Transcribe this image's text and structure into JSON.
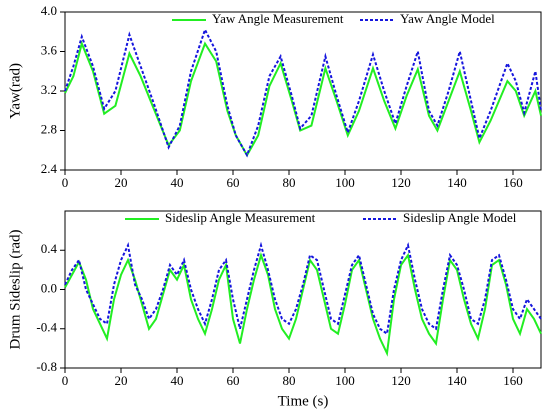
{
  "chart_data": [
    {
      "type": "line",
      "ylabel": "Yaw(rad)",
      "x": [
        0,
        3,
        6,
        10,
        14,
        18,
        23,
        27,
        32,
        37,
        41,
        45,
        50,
        54,
        58,
        61,
        65,
        69,
        73,
        77,
        81,
        84,
        88,
        93,
        97,
        101,
        105,
        110,
        114,
        118,
        122,
        126,
        130,
        133,
        137,
        141,
        145,
        148,
        152,
        158,
        161,
        164,
        168,
        170
      ],
      "series": [
        {
          "name": "Yaw Angle Measurement",
          "color": "#22ee22",
          "dash": "solid",
          "values": [
            3.18,
            3.35,
            3.68,
            3.4,
            2.97,
            3.05,
            3.58,
            3.35,
            3.0,
            2.65,
            2.8,
            3.3,
            3.68,
            3.5,
            3.0,
            2.75,
            2.55,
            2.75,
            3.25,
            3.48,
            3.1,
            2.8,
            2.85,
            3.43,
            3.1,
            2.75,
            3.0,
            3.43,
            3.1,
            2.82,
            3.15,
            3.42,
            2.95,
            2.8,
            3.1,
            3.4,
            3.0,
            2.68,
            2.9,
            3.3,
            3.2,
            2.95,
            3.2,
            2.95
          ]
        },
        {
          "name": "Yaw Angle Model",
          "color": "#1515dd",
          "dash": "dotted",
          "values": [
            3.2,
            3.45,
            3.75,
            3.45,
            3.02,
            3.2,
            3.77,
            3.45,
            3.05,
            2.63,
            2.85,
            3.4,
            3.82,
            3.6,
            3.05,
            2.75,
            2.55,
            2.85,
            3.35,
            3.55,
            3.15,
            2.82,
            2.95,
            3.55,
            3.15,
            2.78,
            3.1,
            3.57,
            3.2,
            2.87,
            3.25,
            3.6,
            3.0,
            2.85,
            3.2,
            3.6,
            3.1,
            2.72,
            3.0,
            3.48,
            3.3,
            2.98,
            3.4,
            3.0
          ]
        }
      ],
      "xlim": [
        0,
        170
      ],
      "xticks": [
        0,
        20,
        40,
        60,
        80,
        100,
        120,
        140,
        160
      ],
      "ylim": [
        2.4,
        4.0
      ],
      "yticks": [
        2.4,
        2.8,
        3.2,
        3.6,
        {
          "value": 4,
          "label": "4.0"
        }
      ],
      "legend": "top"
    },
    {
      "type": "line",
      "xlabel": "Time (s)",
      "ylabel": "Drum Sideslip (rad)",
      "x": [
        0,
        2.5,
        5,
        7.5,
        10,
        12.5,
        15,
        17.5,
        20,
        22.5,
        25,
        27.5,
        30,
        32.5,
        35,
        37.5,
        40,
        42.5,
        45,
        47.5,
        50,
        52.5,
        55,
        57.5,
        60,
        62.5,
        65,
        67.5,
        70,
        72.5,
        75,
        77.5,
        80,
        82.5,
        85,
        87.5,
        90,
        92.5,
        95,
        97.5,
        100,
        102.5,
        105,
        107.5,
        110,
        112.5,
        115,
        117.5,
        120,
        122.5,
        125,
        127.5,
        130,
        132.5,
        135,
        137.5,
        140,
        142.5,
        145,
        147.5,
        150,
        152.5,
        155,
        157.5,
        160,
        162.5,
        165,
        167.5,
        170
      ],
      "series": [
        {
          "name": "Sideslip Angle Measurement",
          "color": "#22ee22",
          "dash": "solid",
          "values": [
            0.02,
            0.15,
            0.28,
            0.1,
            -0.2,
            -0.35,
            -0.5,
            -0.1,
            0.15,
            0.3,
            0.1,
            -0.15,
            -0.4,
            -0.3,
            -0.05,
            0.2,
            0.1,
            0.25,
            -0.1,
            -0.3,
            -0.45,
            -0.2,
            0.1,
            0.25,
            -0.3,
            -0.55,
            -0.2,
            0.1,
            0.35,
            0.15,
            -0.2,
            -0.4,
            -0.5,
            -0.3,
            0.0,
            0.3,
            0.2,
            -0.1,
            -0.4,
            -0.45,
            -0.15,
            0.2,
            0.3,
            0.0,
            -0.3,
            -0.5,
            -0.65,
            -0.1,
            0.25,
            0.35,
            0.0,
            -0.3,
            -0.45,
            -0.55,
            -0.1,
            0.3,
            0.2,
            -0.1,
            -0.35,
            -0.5,
            -0.2,
            0.25,
            0.3,
            0.05,
            -0.3,
            -0.45,
            -0.2,
            -0.3,
            -0.45
          ]
        },
        {
          "name": "Sideslip Angle Model",
          "color": "#1515dd",
          "dash": "dotted",
          "values": [
            0.05,
            0.2,
            0.3,
            0.0,
            -0.15,
            -0.3,
            -0.35,
            0.05,
            0.3,
            0.45,
            0.05,
            -0.1,
            -0.3,
            -0.2,
            0.0,
            0.25,
            0.15,
            0.3,
            0.0,
            -0.2,
            -0.35,
            -0.1,
            0.2,
            0.3,
            -0.1,
            -0.4,
            -0.1,
            0.2,
            0.45,
            0.2,
            -0.1,
            -0.3,
            -0.35,
            -0.2,
            0.05,
            0.35,
            0.3,
            0.0,
            -0.3,
            -0.35,
            -0.05,
            0.25,
            0.35,
            0.05,
            -0.25,
            -0.4,
            -0.45,
            0.0,
            0.3,
            0.45,
            0.1,
            -0.2,
            -0.35,
            -0.4,
            0.0,
            0.35,
            0.25,
            0.0,
            -0.3,
            -0.35,
            -0.1,
            0.3,
            0.35,
            0.1,
            -0.2,
            -0.3,
            -0.1,
            -0.2,
            -0.3
          ]
        }
      ],
      "xlim": [
        0,
        170
      ],
      "xticks": [
        0,
        20,
        40,
        60,
        80,
        100,
        120,
        140,
        160
      ],
      "ylim": [
        -0.8,
        0.8
      ],
      "yticks": [
        -0.8,
        -0.4,
        {
          "value": 0,
          "label": "0.0"
        },
        0.4
      ],
      "legend": "top"
    }
  ]
}
